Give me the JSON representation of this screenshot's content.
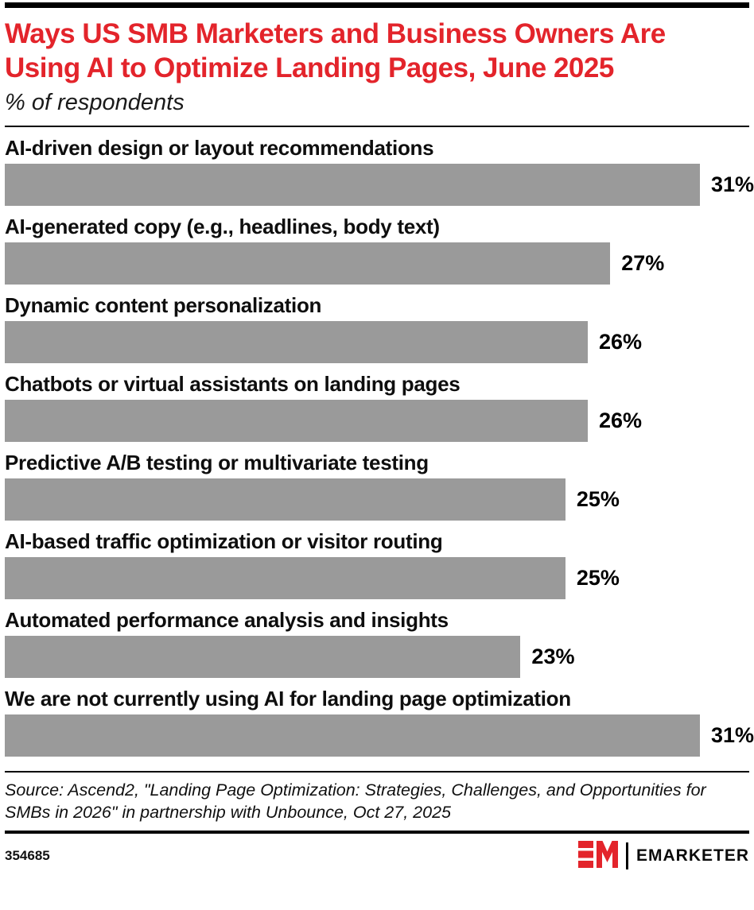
{
  "header": {
    "subtitle": "% of respondents"
  },
  "chart_data": {
    "type": "bar",
    "orientation": "horizontal",
    "title": "Ways US SMB Marketers and Business Owners Are Using AI to Optimize Landing Pages, June 2025",
    "subtitle": "% of respondents",
    "categories": [
      "AI-driven design or layout recommendations",
      "AI-generated copy (e.g., headlines, body text)",
      "Dynamic content personalization",
      "Chatbots or virtual assistants on landing pages",
      "Predictive A/B testing or multivariate testing",
      "AI-based traffic optimization or visitor routing",
      "Automated performance analysis and insights",
      "We are not currently using AI for landing page optimization"
    ],
    "values": [
      31,
      27,
      26,
      26,
      25,
      25,
      23,
      31
    ],
    "value_suffix": "%",
    "xlim": [
      0,
      33.2
    ],
    "grid": false,
    "legend": false,
    "bar_color": "#9a9a9a",
    "data_label_position": "right-of-bar"
  },
  "footer": {
    "source": "Source: Ascend2, \"Landing Page Optimization: Strategies, Challenges, and Opportunities for SMBs in 2026\" in partnership with Unbounce, Oct 27, 2025",
    "chart_id": "354685",
    "brand": "EMARKETER"
  },
  "colors": {
    "accent_red": "#e3242b",
    "bar_gray": "#9a9a9a",
    "rule_black": "#000000"
  }
}
